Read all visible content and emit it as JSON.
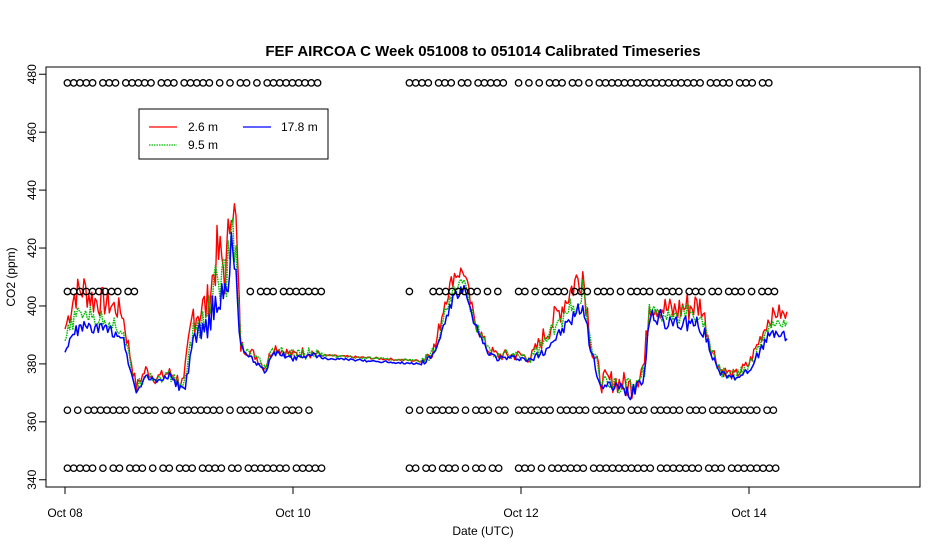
{
  "chart_data": {
    "type": "line",
    "title": "FEF AIRCOA C  Week 051008 to 051014  Calibrated Timeseries",
    "xlabel": "Date (UTC)",
    "ylabel": "CO2 (ppm)",
    "xlim": [
      "2005-10-07T20:00",
      "2005-10-15T12:00"
    ],
    "ylim": [
      337.5,
      482.5
    ],
    "x_ticks": [
      {
        "value": "2005-10-08T00:00",
        "label": "Oct 08"
      },
      {
        "value": "2005-10-10T00:00",
        "label": "Oct 10"
      },
      {
        "value": "2005-10-12T00:00",
        "label": "Oct 12"
      },
      {
        "value": "2005-10-14T00:00",
        "label": "Oct 14"
      }
    ],
    "y_ticks": [
      340,
      360,
      380,
      400,
      420,
      440,
      460,
      480
    ],
    "grid": false,
    "legend": {
      "placement": "top-left",
      "columns": 2
    },
    "series": [
      {
        "name": "2.6 m",
        "color": "#ff0000",
        "x": [
          "2005-10-08T00:00",
          "2005-10-08T02:00",
          "2005-10-08T04:00",
          "2005-10-08T06:00",
          "2005-10-08T09:00",
          "2005-10-08T12:00",
          "2005-10-08T15:00",
          "2005-10-08T17:00",
          "2005-10-08T19:00",
          "2005-10-08T22:00",
          "2005-10-09T01:00",
          "2005-10-09T03:00",
          "2005-10-09T06:00",
          "2005-10-09T08:00",
          "2005-10-09T10:00",
          "2005-10-09T11:00",
          "2005-10-09T12:00",
          "2005-10-09T13:00",
          "2005-10-09T14:00",
          "2005-10-09T16:00",
          "2005-10-09T18:00",
          "2005-10-09T20:00",
          "2005-10-10T00:00",
          "2005-10-10T02:00",
          "2005-10-10T04:00",
          "2005-10-10T06:00",
          "2005-10-11T03:00",
          "2005-10-11T06:00",
          "2005-10-11T08:00",
          "2005-10-11T10:00",
          "2005-10-11T12:00",
          "2005-10-11T14:00",
          "2005-10-11T17:00",
          "2005-10-11T19:00",
          "2005-10-12T00:00",
          "2005-10-12T02:00",
          "2005-10-12T05:00",
          "2005-10-12T08:00",
          "2005-10-12T11:00",
          "2005-10-12T13:00",
          "2005-10-12T15:00",
          "2005-10-12T17:00",
          "2005-10-12T20:00",
          "2005-10-12T23:00",
          "2005-10-13T02:00",
          "2005-10-13T03:00",
          "2005-10-13T05:00",
          "2005-10-13T08:00",
          "2005-10-13T11:00",
          "2005-10-13T14:00",
          "2005-10-13T16:00",
          "2005-10-13T18:00",
          "2005-10-13T21:00",
          "2005-10-14T00:00",
          "2005-10-14T04:00",
          "2005-10-14T06:00",
          "2005-10-14T08:00"
        ],
        "y": [
          392,
          404,
          406,
          402,
          401,
          398,
          372,
          378,
          375,
          377,
          373,
          398,
          400,
          418,
          412,
          439,
          428,
          386,
          385,
          383,
          379,
          386,
          383,
          384,
          384,
          383,
          381,
          386,
          402,
          411,
          412,
          396,
          385,
          383,
          383,
          382,
          390,
          398,
          407,
          412,
          384,
          374,
          374,
          372,
          380,
          401,
          400,
          398,
          400,
          400,
          386,
          378,
          376,
          380,
          395,
          398,
          396
        ],
        "amplitude": [
          4,
          6,
          6,
          6,
          5,
          4,
          2,
          2,
          2,
          2,
          3,
          8,
          8,
          10,
          12,
          10,
          8,
          3,
          2,
          2,
          2,
          2,
          2,
          2,
          2,
          1,
          2,
          3,
          3,
          3,
          3,
          3,
          2,
          2,
          2,
          2,
          4,
          5,
          6,
          7,
          4,
          4,
          4,
          5,
          5,
          5,
          5,
          5,
          6,
          5,
          3,
          2,
          2,
          2,
          3,
          3,
          3
        ]
      },
      {
        "name": "9.5 m",
        "color": "#00bb00",
        "x": [
          "2005-10-08T00:00",
          "2005-10-08T02:00",
          "2005-10-08T04:00",
          "2005-10-08T06:00",
          "2005-10-08T09:00",
          "2005-10-08T12:00",
          "2005-10-08T15:00",
          "2005-10-08T17:00",
          "2005-10-08T19:00",
          "2005-10-08T22:00",
          "2005-10-09T01:00",
          "2005-10-09T03:00",
          "2005-10-09T06:00",
          "2005-10-09T08:00",
          "2005-10-09T10:00",
          "2005-10-09T11:00",
          "2005-10-09T12:00",
          "2005-10-09T13:00",
          "2005-10-09T14:00",
          "2005-10-09T16:00",
          "2005-10-09T18:00",
          "2005-10-09T20:00",
          "2005-10-10T00:00",
          "2005-10-10T02:00",
          "2005-10-10T04:00",
          "2005-10-10T06:00",
          "2005-10-11T03:00",
          "2005-10-11T06:00",
          "2005-10-11T08:00",
          "2005-10-11T10:00",
          "2005-10-11T12:00",
          "2005-10-11T14:00",
          "2005-10-11T17:00",
          "2005-10-11T19:00",
          "2005-10-12T00:00",
          "2005-10-12T02:00",
          "2005-10-12T05:00",
          "2005-10-12T08:00",
          "2005-10-12T11:00",
          "2005-10-12T13:00",
          "2005-10-12T15:00",
          "2005-10-12T17:00",
          "2005-10-12T20:00",
          "2005-10-12T23:00",
          "2005-10-13T02:00",
          "2005-10-13T03:00",
          "2005-10-13T05:00",
          "2005-10-13T08:00",
          "2005-10-13T11:00",
          "2005-10-13T14:00",
          "2005-10-13T16:00",
          "2005-10-13T18:00",
          "2005-10-13T21:00",
          "2005-10-14T00:00",
          "2005-10-14T04:00",
          "2005-10-14T06:00",
          "2005-10-14T08:00"
        ],
        "y": [
          388,
          396,
          398,
          396,
          395,
          392,
          371,
          377,
          375,
          376,
          372,
          392,
          397,
          410,
          408,
          428,
          418,
          386,
          384,
          382,
          378,
          385,
          383,
          383,
          384,
          383,
          381,
          385,
          398,
          406,
          409,
          395,
          385,
          383,
          383,
          382,
          388,
          394,
          400,
          405,
          384,
          374,
          373,
          372,
          378,
          399,
          398,
          396,
          398,
          396,
          385,
          377,
          376,
          379,
          392,
          394,
          394
        ],
        "amplitude": [
          3,
          3,
          3,
          3,
          3,
          3,
          2,
          2,
          2,
          2,
          2,
          6,
          6,
          8,
          8,
          8,
          6,
          2,
          2,
          2,
          2,
          2,
          2,
          2,
          2,
          1,
          2,
          2,
          2,
          2,
          2,
          2,
          2,
          2,
          2,
          2,
          3,
          3,
          4,
          4,
          3,
          3,
          3,
          3,
          3,
          3,
          3,
          3,
          3,
          3,
          2,
          2,
          2,
          2,
          2,
          2,
          2
        ]
      },
      {
        "name": "17.8 m",
        "color": "#0000ff",
        "x": [
          "2005-10-08T00:00",
          "2005-10-08T02:00",
          "2005-10-08T04:00",
          "2005-10-08T06:00",
          "2005-10-08T09:00",
          "2005-10-08T12:00",
          "2005-10-08T15:00",
          "2005-10-08T17:00",
          "2005-10-08T19:00",
          "2005-10-08T22:00",
          "2005-10-09T01:00",
          "2005-10-09T03:00",
          "2005-10-09T06:00",
          "2005-10-09T08:00",
          "2005-10-09T10:00",
          "2005-10-09T11:00",
          "2005-10-09T12:00",
          "2005-10-09T13:00",
          "2005-10-09T14:00",
          "2005-10-09T16:00",
          "2005-10-09T18:00",
          "2005-10-09T20:00",
          "2005-10-10T00:00",
          "2005-10-10T02:00",
          "2005-10-10T04:00",
          "2005-10-10T06:00",
          "2005-10-11T03:00",
          "2005-10-11T06:00",
          "2005-10-11T08:00",
          "2005-10-11T10:00",
          "2005-10-11T12:00",
          "2005-10-11T14:00",
          "2005-10-11T17:00",
          "2005-10-11T19:00",
          "2005-10-12T00:00",
          "2005-10-12T02:00",
          "2005-10-12T05:00",
          "2005-10-12T08:00",
          "2005-10-12T11:00",
          "2005-10-12T13:00",
          "2005-10-12T15:00",
          "2005-10-12T17:00",
          "2005-10-12T20:00",
          "2005-10-12T23:00",
          "2005-10-13T02:00",
          "2005-10-13T03:00",
          "2005-10-13T05:00",
          "2005-10-13T08:00",
          "2005-10-13T11:00",
          "2005-10-13T14:00",
          "2005-10-13T16:00",
          "2005-10-13T18:00",
          "2005-10-13T21:00",
          "2005-10-14T00:00",
          "2005-10-14T04:00",
          "2005-10-14T06:00",
          "2005-10-14T08:00"
        ],
        "y": [
          384,
          391,
          393,
          392,
          392,
          390,
          370,
          376,
          374,
          376,
          370,
          386,
          394,
          402,
          404,
          422,
          410,
          385,
          383,
          381,
          377,
          384,
          382,
          383,
          383,
          382,
          380,
          384,
          395,
          403,
          406,
          394,
          384,
          382,
          382,
          381,
          385,
          390,
          396,
          400,
          383,
          372,
          372,
          370,
          377,
          396,
          396,
          394,
          394,
          393,
          384,
          377,
          375,
          378,
          389,
          391,
          389
        ],
        "amplitude": [
          2,
          2,
          2,
          2,
          2,
          2,
          1,
          1,
          1,
          1,
          2,
          5,
          5,
          6,
          6,
          6,
          5,
          2,
          1,
          1,
          1,
          1,
          1,
          1,
          1,
          1,
          1,
          1,
          2,
          2,
          2,
          2,
          1,
          1,
          1,
          1,
          2,
          2,
          3,
          3,
          2,
          2,
          2,
          3,
          3,
          3,
          3,
          3,
          3,
          3,
          2,
          1,
          1,
          1,
          2,
          2,
          2
        ]
      }
    ],
    "flag_rows": [
      {
        "y": 477,
        "runs": [
          [
            "2005-10-08T00:30",
            "2005-10-10T06:00"
          ],
          [
            "2005-10-11T00:30",
            "2005-10-11T21:00"
          ],
          [
            "2005-10-11T23:30",
            "2005-10-14T06:00"
          ]
        ]
      },
      {
        "y": 405,
        "runs": [
          [
            "2005-10-08T00:30",
            "2005-10-08T15:00"
          ],
          [
            "2005-10-09T15:00",
            "2005-10-10T06:00"
          ],
          [
            "2005-10-11T00:30",
            "2005-10-11T01:30"
          ],
          [
            "2005-10-11T05:30",
            "2005-10-11T21:00"
          ],
          [
            "2005-10-11T23:30",
            "2005-10-14T06:00"
          ]
        ]
      },
      {
        "y": 364,
        "runs": [
          [
            "2005-10-08T00:30",
            "2005-10-10T04:00"
          ],
          [
            "2005-10-11T00:30",
            "2005-10-11T21:00"
          ],
          [
            "2005-10-11T23:30",
            "2005-10-14T06:00"
          ]
        ]
      },
      {
        "y": 344,
        "runs": [
          [
            "2005-10-08T00:30",
            "2005-10-10T06:00"
          ],
          [
            "2005-10-11T00:30",
            "2005-10-11T21:00"
          ],
          [
            "2005-10-11T23:30",
            "2005-10-14T06:00"
          ]
        ]
      }
    ]
  }
}
